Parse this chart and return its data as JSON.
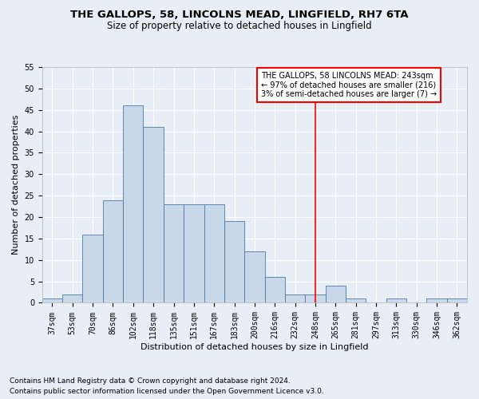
{
  "title": "THE GALLOPS, 58, LINCOLNS MEAD, LINGFIELD, RH7 6TA",
  "subtitle": "Size of property relative to detached houses in Lingfield",
  "xlabel": "Distribution of detached houses by size in Lingfield",
  "ylabel": "Number of detached properties",
  "footnote1": "Contains HM Land Registry data © Crown copyright and database right 2024.",
  "footnote2": "Contains public sector information licensed under the Open Government Licence v3.0.",
  "categories": [
    "37sqm",
    "53sqm",
    "70sqm",
    "86sqm",
    "102sqm",
    "118sqm",
    "135sqm",
    "151sqm",
    "167sqm",
    "183sqm",
    "200sqm",
    "216sqm",
    "232sqm",
    "248sqm",
    "265sqm",
    "281sqm",
    "297sqm",
    "313sqm",
    "330sqm",
    "346sqm",
    "362sqm"
  ],
  "values": [
    1,
    2,
    16,
    24,
    46,
    41,
    23,
    23,
    23,
    19,
    12,
    6,
    2,
    2,
    4,
    1,
    0,
    1,
    0,
    1,
    1
  ],
  "bar_color": "#c8d8e8",
  "bar_edge_color": "#4a7aab",
  "vline_color": "red",
  "annotation_text": "THE GALLOPS, 58 LINCOLNS MEAD: 243sqm\n← 97% of detached houses are smaller (216)\n3% of semi-detached houses are larger (7) →",
  "annotation_box_color": "white",
  "annotation_box_edge": "red",
  "ylim": [
    0,
    55
  ],
  "yticks": [
    0,
    5,
    10,
    15,
    20,
    25,
    30,
    35,
    40,
    45,
    50,
    55
  ],
  "background_color": "#e8eef5",
  "grid_color": "white",
  "title_fontsize": 9.5,
  "subtitle_fontsize": 8.5,
  "axis_label_fontsize": 8,
  "tick_fontsize": 7,
  "annotation_fontsize": 7,
  "footnote_fontsize": 6.5
}
